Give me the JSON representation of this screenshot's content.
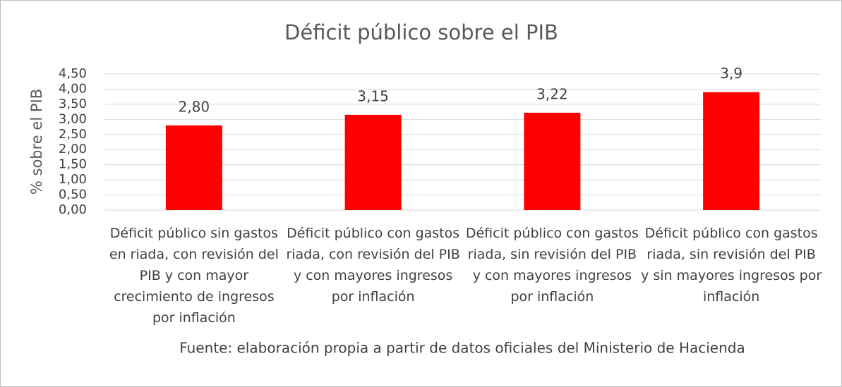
{
  "chart_data": {
    "type": "bar",
    "title": "Déficit público sobre el PIB",
    "y_label": "% sobre el PIB",
    "source": "Fuente: elaboración propia a partir de datos oficiales del Ministerio de Hacienda",
    "categories": [
      "Déficit público sin gastos en riada, con revisión del PIB y con mayor crecimiento de ingresos por inflación",
      "Déficit público con gastos riada, con revisión del PIB y con mayores ingresos por inflación",
      "Déficit público con gastos riada, sin revisión del PIB y con mayores ingresos por inflación",
      "Déficit público con gastos riada, sin revisión del PIB y sin mayores ingresos por inflación"
    ],
    "values": [
      2.8,
      3.15,
      3.22,
      3.9
    ],
    "value_labels": [
      "2,80",
      "3,15",
      "3,22",
      "3,9"
    ],
    "color": "#ff0000",
    "ylim": [
      0,
      4.5
    ],
    "yticks": [
      {
        "value": 0,
        "label": "0,00"
      },
      {
        "value": 0.5,
        "label": "0,50"
      },
      {
        "value": 1,
        "label": "1,00"
      },
      {
        "value": 1.5,
        "label": "1,50"
      },
      {
        "value": 2,
        "label": "2,00"
      },
      {
        "value": 2.5,
        "label": "2,50"
      },
      {
        "value": 3,
        "label": "3,00"
      },
      {
        "value": 3.5,
        "label": "3,50"
      },
      {
        "value": 4,
        "label": "4,00"
      },
      {
        "value": 4.5,
        "label": "4,50"
      }
    ],
    "grid": true
  }
}
